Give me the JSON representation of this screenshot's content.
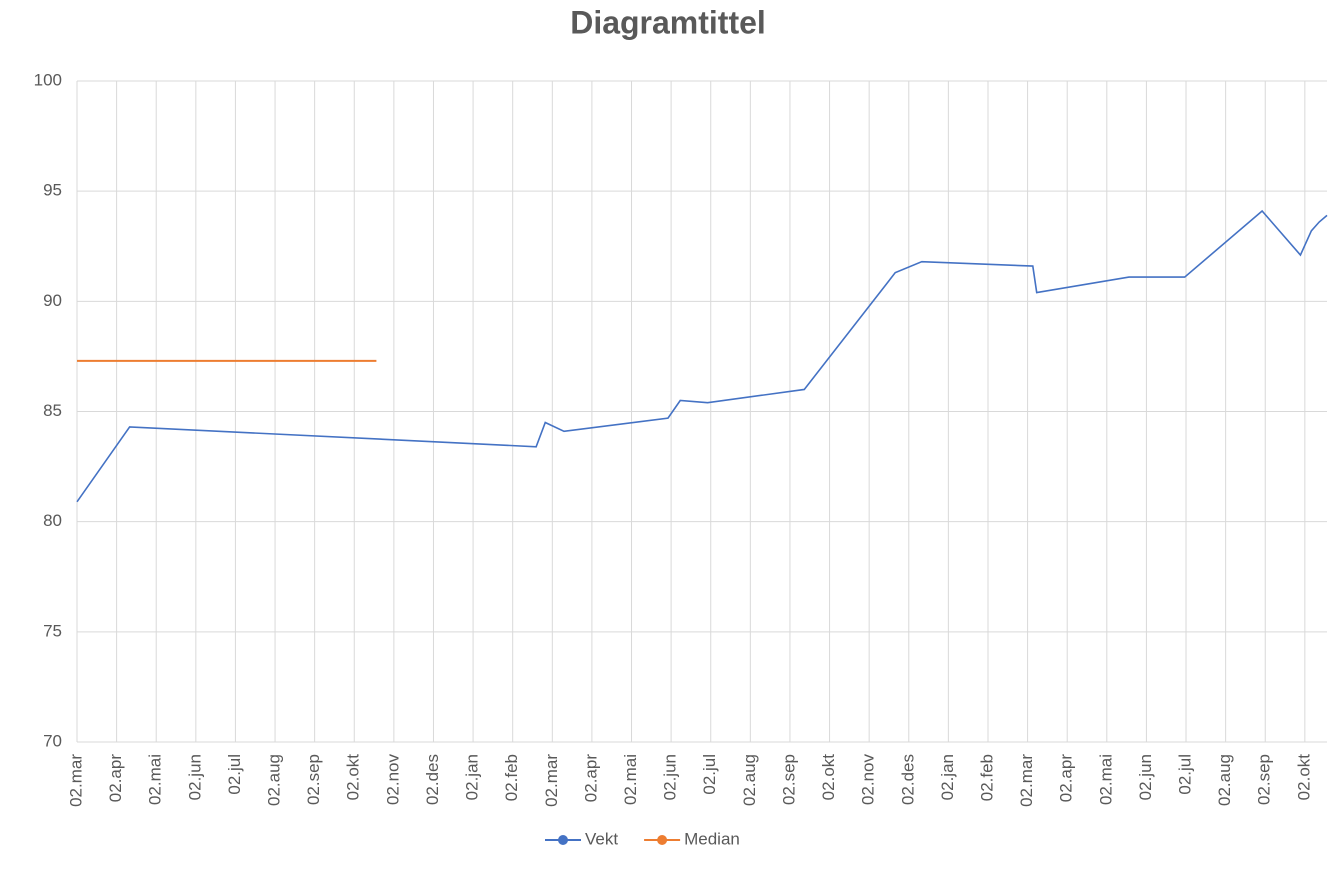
{
  "chart_data": {
    "type": "line",
    "title": "Diagramtittel",
    "xticks": [
      "02.mar",
      "02.apr",
      "02.mai",
      "02.jun",
      "02.jul",
      "02.aug",
      "02.sep",
      "02.okt",
      "02.nov",
      "02.des",
      "02.jan",
      "02.feb",
      "02.mar",
      "02.apr",
      "02.mai",
      "02.jun",
      "02.jul",
      "02.aug",
      "02.sep",
      "02.okt",
      "02.nov",
      "02.des",
      "02.jan",
      "02.feb",
      "02.mar",
      "02.apr",
      "02.mai",
      "02.jun",
      "02.jul",
      "02.aug",
      "02.sep",
      "02.okt"
    ],
    "xlim": [
      "02.mar",
      "19.okt"
    ],
    "ylim": [
      70,
      100
    ],
    "yticks": [
      70,
      75,
      80,
      85,
      90,
      95,
      100
    ],
    "grid": true,
    "legend": "bottom",
    "series": [
      {
        "name": "Vekt",
        "color": "#4472c4",
        "x": [
          "02.mar",
          "12.apr",
          "20.feb",
          "27.feb",
          "11.mar",
          "30.mai",
          "09.jun",
          "30.jun",
          "13.sep",
          "22.nov",
          "12.des",
          "06.mar",
          "09.mar",
          "19.mai",
          "01.jul",
          "30.aug",
          "29.sep",
          "07.okt",
          "13.okt",
          "19.okt"
        ],
        "values": [
          80.9,
          84.3,
          83.4,
          84.5,
          84.1,
          84.7,
          85.5,
          85.4,
          86.0,
          91.3,
          91.8,
          91.6,
          90.4,
          91.1,
          91.1,
          94.1,
          92.1,
          93.2,
          93.6,
          93.9
        ]
      },
      {
        "name": "Median",
        "color": "#ed7d31",
        "x": [
          "02.mar",
          "19.okt"
        ],
        "values": [
          87.3,
          87.3
        ]
      }
    ]
  }
}
